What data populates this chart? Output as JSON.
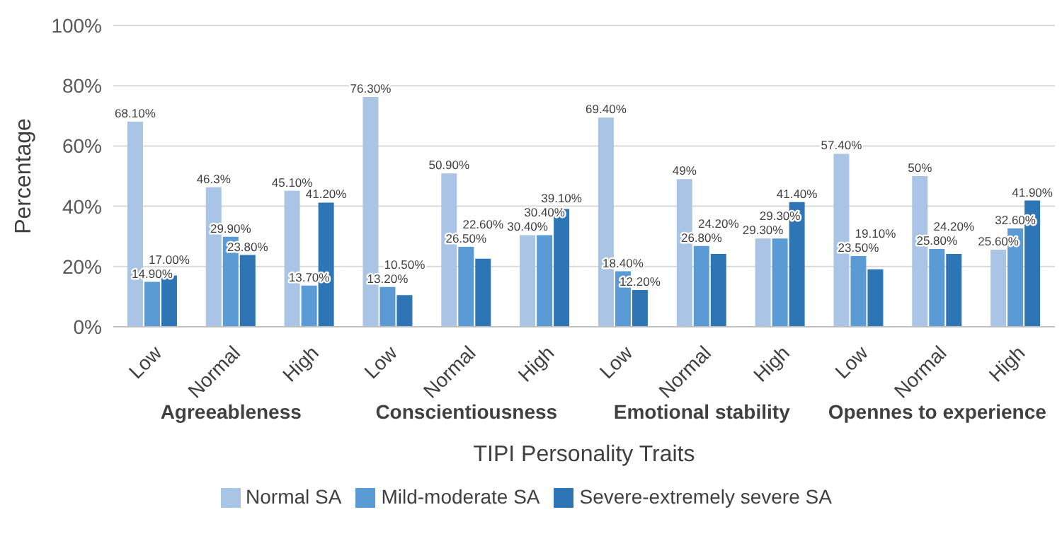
{
  "chart_data": {
    "type": "bar",
    "xlabel": "TIPI Personality Traits",
    "ylabel": "Percentage",
    "categories": [
      "Low",
      "Normal",
      "High",
      "Low",
      "Normal",
      "High",
      "Low",
      "Normal",
      "High",
      "Low",
      "Normal",
      "High"
    ],
    "annotations": [
      "Agreeableness",
      "Conscientiousness",
      "Emotional stability",
      "Opennes to experience"
    ],
    "series": [
      {
        "name": "Normal SA",
        "color": "#a9c4e4",
        "values": [
          68.1,
          46.3,
          45.1,
          76.3,
          50.9,
          30.4,
          69.4,
          49,
          29.3,
          57.4,
          50,
          25.6
        ],
        "value_labels": [
          "68.10%",
          "46.3%",
          "45.10%",
          "76.30%",
          "50.90%",
          "30.40%",
          "69.40%",
          "49%",
          "29.30%",
          "57.40%",
          "50%",
          "25.60%"
        ]
      },
      {
        "name": "Mild-moderate SA",
        "color": "#5b9bd5",
        "values": [
          14.9,
          29.9,
          13.7,
          13.2,
          26.5,
          30.4,
          18.4,
          26.8,
          29.3,
          23.5,
          25.8,
          32.6
        ],
        "value_labels": [
          "14.90%",
          "29.90%",
          "13.70%",
          "13.20%",
          "26.50%",
          "30.40%",
          "18.40%",
          "26.80%",
          "29.30%",
          "23.50%",
          "25.80%",
          "32.60%"
        ]
      },
      {
        "name": "Severe-extremely severe SA",
        "color": "#2e75b6",
        "values": [
          17,
          23.8,
          41.2,
          10.5,
          22.6,
          39.1,
          12.2,
          24.2,
          41.4,
          19.1,
          24.2,
          41.9
        ],
        "value_labels": [
          "17.00%",
          "23.80%",
          "41.20%",
          "10.50%",
          "22.60%",
          "39.10%",
          "12.20%",
          "24.20%",
          "41.40%",
          "19.10%",
          "24.20%",
          "41.90%"
        ]
      }
    ],
    "ylim": [
      0,
      100
    ],
    "yticks": [
      {
        "value": 0,
        "label": "0%"
      },
      {
        "value": 20,
        "label": "20%"
      },
      {
        "value": 40,
        "label": "40%"
      },
      {
        "value": 60,
        "label": "60%"
      },
      {
        "value": 80,
        "label": "80%"
      },
      {
        "value": 100,
        "label": "100%"
      }
    ],
    "grid": "y",
    "legend": "bottom"
  }
}
